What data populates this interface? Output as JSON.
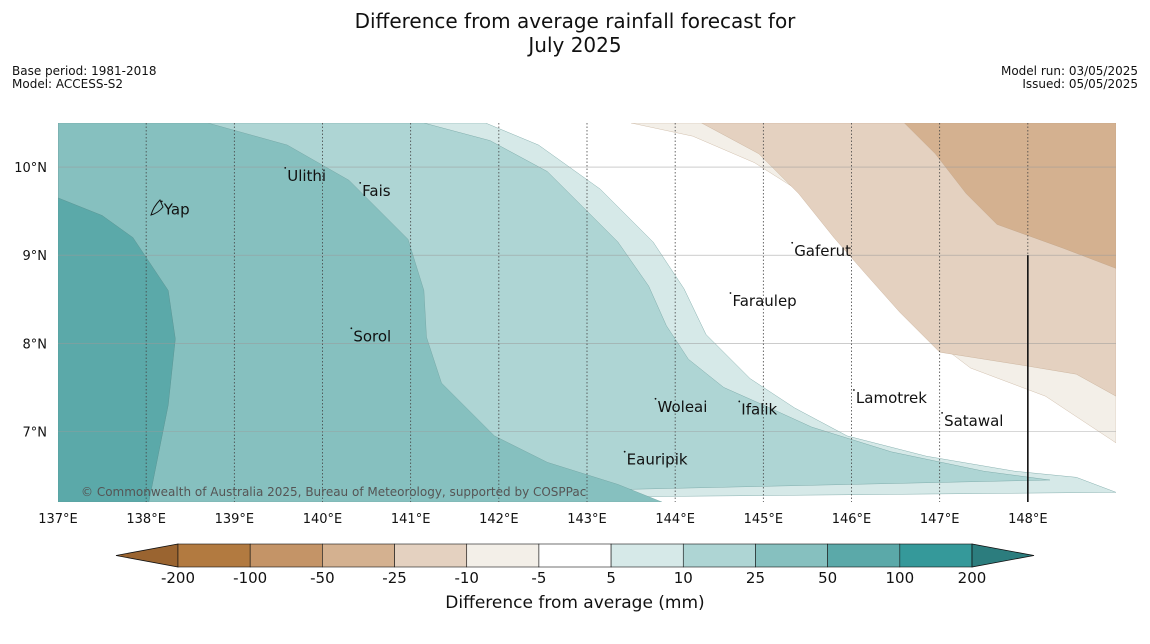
{
  "title_line1": "Difference from average rainfall forecast for",
  "title_line2": "July 2025",
  "base_period": "Base period: 1981-2018",
  "model": "Model: ACCESS-S2",
  "model_run": "Model run: 03/05/2025",
  "issued": "Issued: 05/05/2025",
  "copyright": "© Commonwealth of Australia 2025, Bureau of Meteorology, supported by COSPPac",
  "x_ticks": [
    "137°E",
    "138°E",
    "139°E",
    "140°E",
    "141°E",
    "142°E",
    "143°E",
    "144°E",
    "145°E",
    "146°E",
    "147°E",
    "148°E"
  ],
  "y_ticks": [
    "10°N",
    "9°N",
    "8°N",
    "7°N"
  ],
  "places": [
    {
      "name": "Yap",
      "lon": 138.2,
      "lat": 9.52
    },
    {
      "name": "Ulithi",
      "lon": 139.6,
      "lat": 9.9
    },
    {
      "name": "Fais",
      "lon": 140.45,
      "lat": 9.73
    },
    {
      "name": "Gaferut",
      "lon": 145.35,
      "lat": 9.05
    },
    {
      "name": "Faraulep",
      "lon": 144.65,
      "lat": 8.48
    },
    {
      "name": "Sorol",
      "lon": 140.35,
      "lat": 8.08
    },
    {
      "name": "Lamotrek",
      "lon": 146.05,
      "lat": 7.38
    },
    {
      "name": "Woleai",
      "lon": 143.8,
      "lat": 7.28
    },
    {
      "name": "Ifalik",
      "lon": 144.75,
      "lat": 7.25
    },
    {
      "name": "Satawal",
      "lon": 147.05,
      "lat": 7.12
    },
    {
      "name": "Eauripik",
      "lon": 143.45,
      "lat": 6.68
    }
  ],
  "colorbar": {
    "labels": [
      "-200",
      "-100",
      "-50",
      "-25",
      "-10",
      "-5",
      "5",
      "10",
      "25",
      "50",
      "100",
      "200"
    ],
    "colors": [
      "#9a6430",
      "#b27a40",
      "#c49467",
      "#d4b190",
      "#e4d1c0",
      "#f3efe8",
      "#ffffff",
      "#d6e9e8",
      "#aed5d4",
      "#86c0bf",
      "#5ba9a9",
      "#35999a",
      "#2c7d7e"
    ],
    "title": "Difference from average (mm)"
  },
  "chart_data": {
    "type": "map",
    "extent": {
      "lon": [
        137,
        149
      ],
      "lat": [
        6.2,
        10.5
      ]
    },
    "categories_mm": [
      "< -200",
      "-200 to -100",
      "-100 to -50",
      "-50 to -25",
      "-25 to -10",
      "-10 to -5",
      "-5 to 5",
      "5 to 10",
      "10 to 25",
      "25 to 50",
      "50 to 100",
      "100 to 200",
      "> 200"
    ],
    "bands": [
      {
        "range": "50 to 100",
        "color": "#5ba9a9",
        "boundary": [
          [
            137,
            9.65
          ],
          [
            137.5,
            9.45
          ],
          [
            137.85,
            9.2
          ],
          [
            138.25,
            8.6
          ],
          [
            138.33,
            8.05
          ],
          [
            138.25,
            7.3
          ],
          [
            138.03,
            6.2
          ]
        ]
      },
      {
        "range": "25 to 50",
        "color": "#86c0bf",
        "boundary": [
          [
            138.7,
            10.5
          ],
          [
            139.6,
            10.25
          ],
          [
            140.3,
            9.85
          ],
          [
            140.97,
            9.18
          ],
          [
            141.15,
            8.6
          ],
          [
            141.18,
            8.07
          ],
          [
            141.35,
            7.55
          ],
          [
            141.95,
            6.95
          ],
          [
            142.55,
            6.65
          ],
          [
            143.35,
            6.4
          ],
          [
            143.85,
            6.2
          ]
        ]
      },
      {
        "range": "10 to 25",
        "color": "#aed5d4",
        "boundary": [
          [
            141.15,
            10.5
          ],
          [
            141.9,
            10.3
          ],
          [
            142.55,
            9.95
          ],
          [
            142.95,
            9.55
          ],
          [
            143.35,
            9.15
          ],
          [
            143.7,
            8.65
          ],
          [
            143.9,
            8.2
          ],
          [
            144.15,
            7.82
          ],
          [
            144.55,
            7.5
          ],
          [
            145.0,
            7.3
          ],
          [
            145.55,
            7.05
          ],
          [
            146.45,
            6.77
          ],
          [
            147.5,
            6.55
          ],
          [
            148.25,
            6.45
          ]
        ]
      },
      {
        "range": "5 to 10",
        "color": "#d6e9e8",
        "boundary": [
          [
            141.85,
            10.5
          ],
          [
            142.45,
            10.25
          ],
          [
            143.15,
            9.75
          ],
          [
            143.75,
            9.15
          ],
          [
            144.1,
            8.62
          ],
          [
            144.35,
            8.1
          ],
          [
            144.85,
            7.6
          ],
          [
            145.35,
            7.27
          ],
          [
            145.95,
            6.95
          ],
          [
            146.85,
            6.72
          ],
          [
            147.85,
            6.55
          ],
          [
            148.55,
            6.48
          ],
          [
            149,
            6.31
          ]
        ]
      },
      {
        "range": "-10 to -5",
        "color": "#f3efe8",
        "boundary": [
          [
            143.5,
            10.5
          ],
          [
            144.2,
            10.35
          ],
          [
            144.9,
            10.05
          ],
          [
            145.45,
            9.7
          ],
          [
            145.9,
            9.3
          ],
          [
            146.15,
            8.9
          ],
          [
            146.5,
            8.5
          ],
          [
            146.85,
            8.1
          ],
          [
            147.35,
            7.72
          ],
          [
            148.2,
            7.4
          ],
          [
            149,
            6.87
          ]
        ]
      },
      {
        "range": "-25 to -10",
        "color": "#e4d1c0",
        "boundary": [
          [
            144.3,
            10.5
          ],
          [
            144.95,
            10.15
          ],
          [
            145.4,
            9.7
          ],
          [
            145.8,
            9.2
          ],
          [
            146.15,
            8.8
          ],
          [
            146.55,
            8.35
          ],
          [
            147.0,
            7.9
          ],
          [
            147.95,
            7.75
          ],
          [
            148.55,
            7.65
          ],
          [
            149,
            7.4
          ]
        ]
      },
      {
        "range": "-50 to -25",
        "color": "#d4b190",
        "boundary": [
          [
            146.6,
            10.5
          ],
          [
            146.95,
            10.15
          ],
          [
            147.3,
            9.7
          ],
          [
            147.65,
            9.35
          ],
          [
            148.4,
            9.08
          ],
          [
            149,
            8.85
          ]
        ]
      }
    ]
  }
}
